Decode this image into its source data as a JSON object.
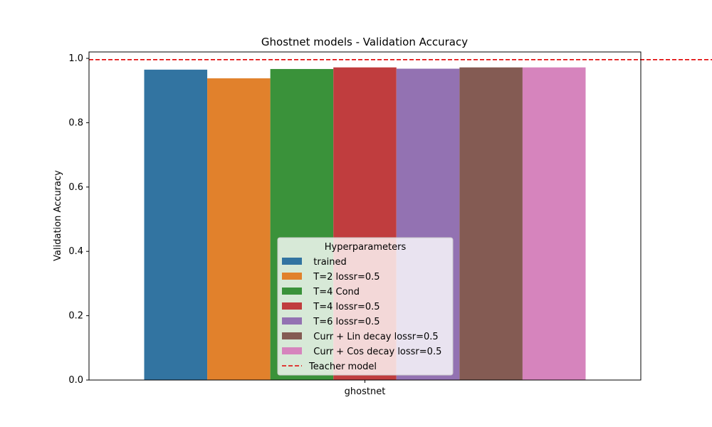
{
  "chart_data": {
    "type": "bar",
    "title": "Ghostnet models - Validation Accuracy",
    "xlabel": "",
    "ylabel": "Validation Accuracy",
    "categories": [
      "ghostnet"
    ],
    "ylim": [
      0,
      1.02
    ],
    "yticks": [
      "0.0",
      "0.2",
      "0.4",
      "0.6",
      "0.8",
      "1.0"
    ],
    "grid": false,
    "legend": {
      "title": "Hyperparameters",
      "placement": "lower center"
    },
    "series": [
      {
        "name": "  trained",
        "values": [
          0.965
        ],
        "color": "#3274a1"
      },
      {
        "name": "  T=2 lossr=0.5",
        "values": [
          0.938
        ],
        "color": "#e1812c"
      },
      {
        "name": "  T=4 Cond",
        "values": [
          0.967
        ],
        "color": "#3a923a"
      },
      {
        "name": "  T=4 lossr=0.5",
        "values": [
          0.972
        ],
        "color": "#c03d3e"
      },
      {
        "name": "  T=6 lossr=0.5",
        "values": [
          0.968
        ],
        "color": "#9372b2"
      },
      {
        "name": "  Curr + Lin decay lossr=0.5",
        "values": [
          0.972
        ],
        "color": "#845b53"
      },
      {
        "name": "  Curr + Cos decay lossr=0.5",
        "values": [
          0.972
        ],
        "color": "#d684bd"
      }
    ],
    "reference_line": {
      "name": "Teacher model",
      "value": 0.996,
      "color": "#e00000",
      "style": "dashed"
    }
  }
}
